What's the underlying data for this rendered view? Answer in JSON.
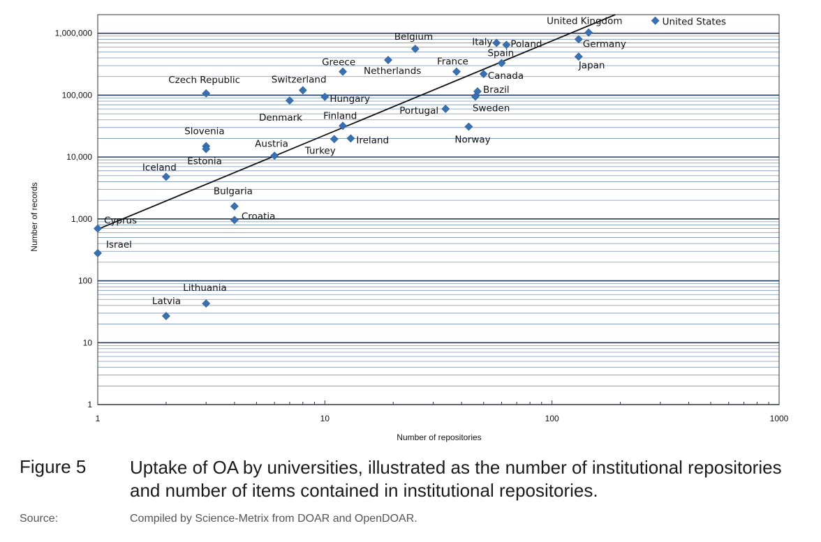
{
  "chart_data": {
    "type": "scatter",
    "xlabel": "Number of repositories",
    "ylabel": "Number of records",
    "x_scale": "log",
    "y_scale": "log",
    "xlim": [
      1,
      1000
    ],
    "ylim": [
      1,
      2000000
    ],
    "x_ticks": [
      1,
      10,
      100,
      1000
    ],
    "x_tick_labels": [
      "1",
      "10",
      "100",
      "1000"
    ],
    "y_ticks": [
      1,
      10,
      100,
      1000,
      10000,
      100000,
      1000000
    ],
    "y_tick_labels": [
      "1",
      "10",
      "100",
      "1,000",
      "10,000",
      "100,000",
      "1,000,000"
    ],
    "grid": "horizontal major and minor",
    "marker_color": "#3a6fb0",
    "grid_color": "#4a6fa0",
    "trendline": {
      "type": "power",
      "x": [
        1,
        190
      ],
      "y": [
        680,
        2000000
      ]
    },
    "points": [
      {
        "label": "United States",
        "x": 285,
        "y": 1600000
      },
      {
        "label": "United Kingdom",
        "x": 145,
        "y": 1030000
      },
      {
        "label": "Germany",
        "x": 131,
        "y": 800000
      },
      {
        "label": "Japan",
        "x": 131,
        "y": 420000
      },
      {
        "label": "Italy",
        "x": 57,
        "y": 700000
      },
      {
        "label": "Poland",
        "x": 63,
        "y": 650000
      },
      {
        "label": "Spain",
        "x": 60,
        "y": 330000
      },
      {
        "label": "Canada",
        "x": 50,
        "y": 220000
      },
      {
        "label": "Brazil",
        "x": 47,
        "y": 115000
      },
      {
        "label": "Sweden",
        "x": 46,
        "y": 95000
      },
      {
        "label": "Norway",
        "x": 43,
        "y": 31000
      },
      {
        "label": "France",
        "x": 38,
        "y": 240000
      },
      {
        "label": "Portugal",
        "x": 34,
        "y": 60000
      },
      {
        "label": "Belgium",
        "x": 25,
        "y": 560000
      },
      {
        "label": "Netherlands",
        "x": 19,
        "y": 370000
      },
      {
        "label": "Greece",
        "x": 12,
        "y": 240000
      },
      {
        "label": "Finland",
        "x": 12,
        "y": 32000
      },
      {
        "label": "Ireland",
        "x": 13,
        "y": 20000
      },
      {
        "label": "Turkey",
        "x": 11,
        "y": 19500
      },
      {
        "label": "Hungary",
        "x": 10,
        "y": 94000
      },
      {
        "label": "Switzerland",
        "x": 8,
        "y": 120000
      },
      {
        "label": "Denmark",
        "x": 7,
        "y": 82000
      },
      {
        "label": "Austria",
        "x": 6,
        "y": 10500
      },
      {
        "label": "Czech Republic",
        "x": 3,
        "y": 107000
      },
      {
        "label": "Slovenia",
        "x": 3,
        "y": 15000
      },
      {
        "label": "Estonia",
        "x": 3,
        "y": 13500
      },
      {
        "label": "Iceland",
        "x": 2,
        "y": 4800
      },
      {
        "label": "Bulgaria",
        "x": 4,
        "y": 1600
      },
      {
        "label": "Croatia",
        "x": 4,
        "y": 960
      },
      {
        "label": "Cyprus",
        "x": 1,
        "y": 700
      },
      {
        "label": "Israel",
        "x": 1,
        "y": 280
      },
      {
        "label": "Lithuania",
        "x": 3,
        "y": 43
      },
      {
        "label": "Latvia",
        "x": 2,
        "y": 27
      }
    ]
  },
  "caption": {
    "figure_number": "Figure 5",
    "text": "Uptake of OA by universities, illustrated as the number of institutional repositories and number of items contained in institutional repositories.",
    "source_label": "Source:",
    "source_text": "Compiled by Science-Metrix from DOAR and OpenDOAR."
  }
}
